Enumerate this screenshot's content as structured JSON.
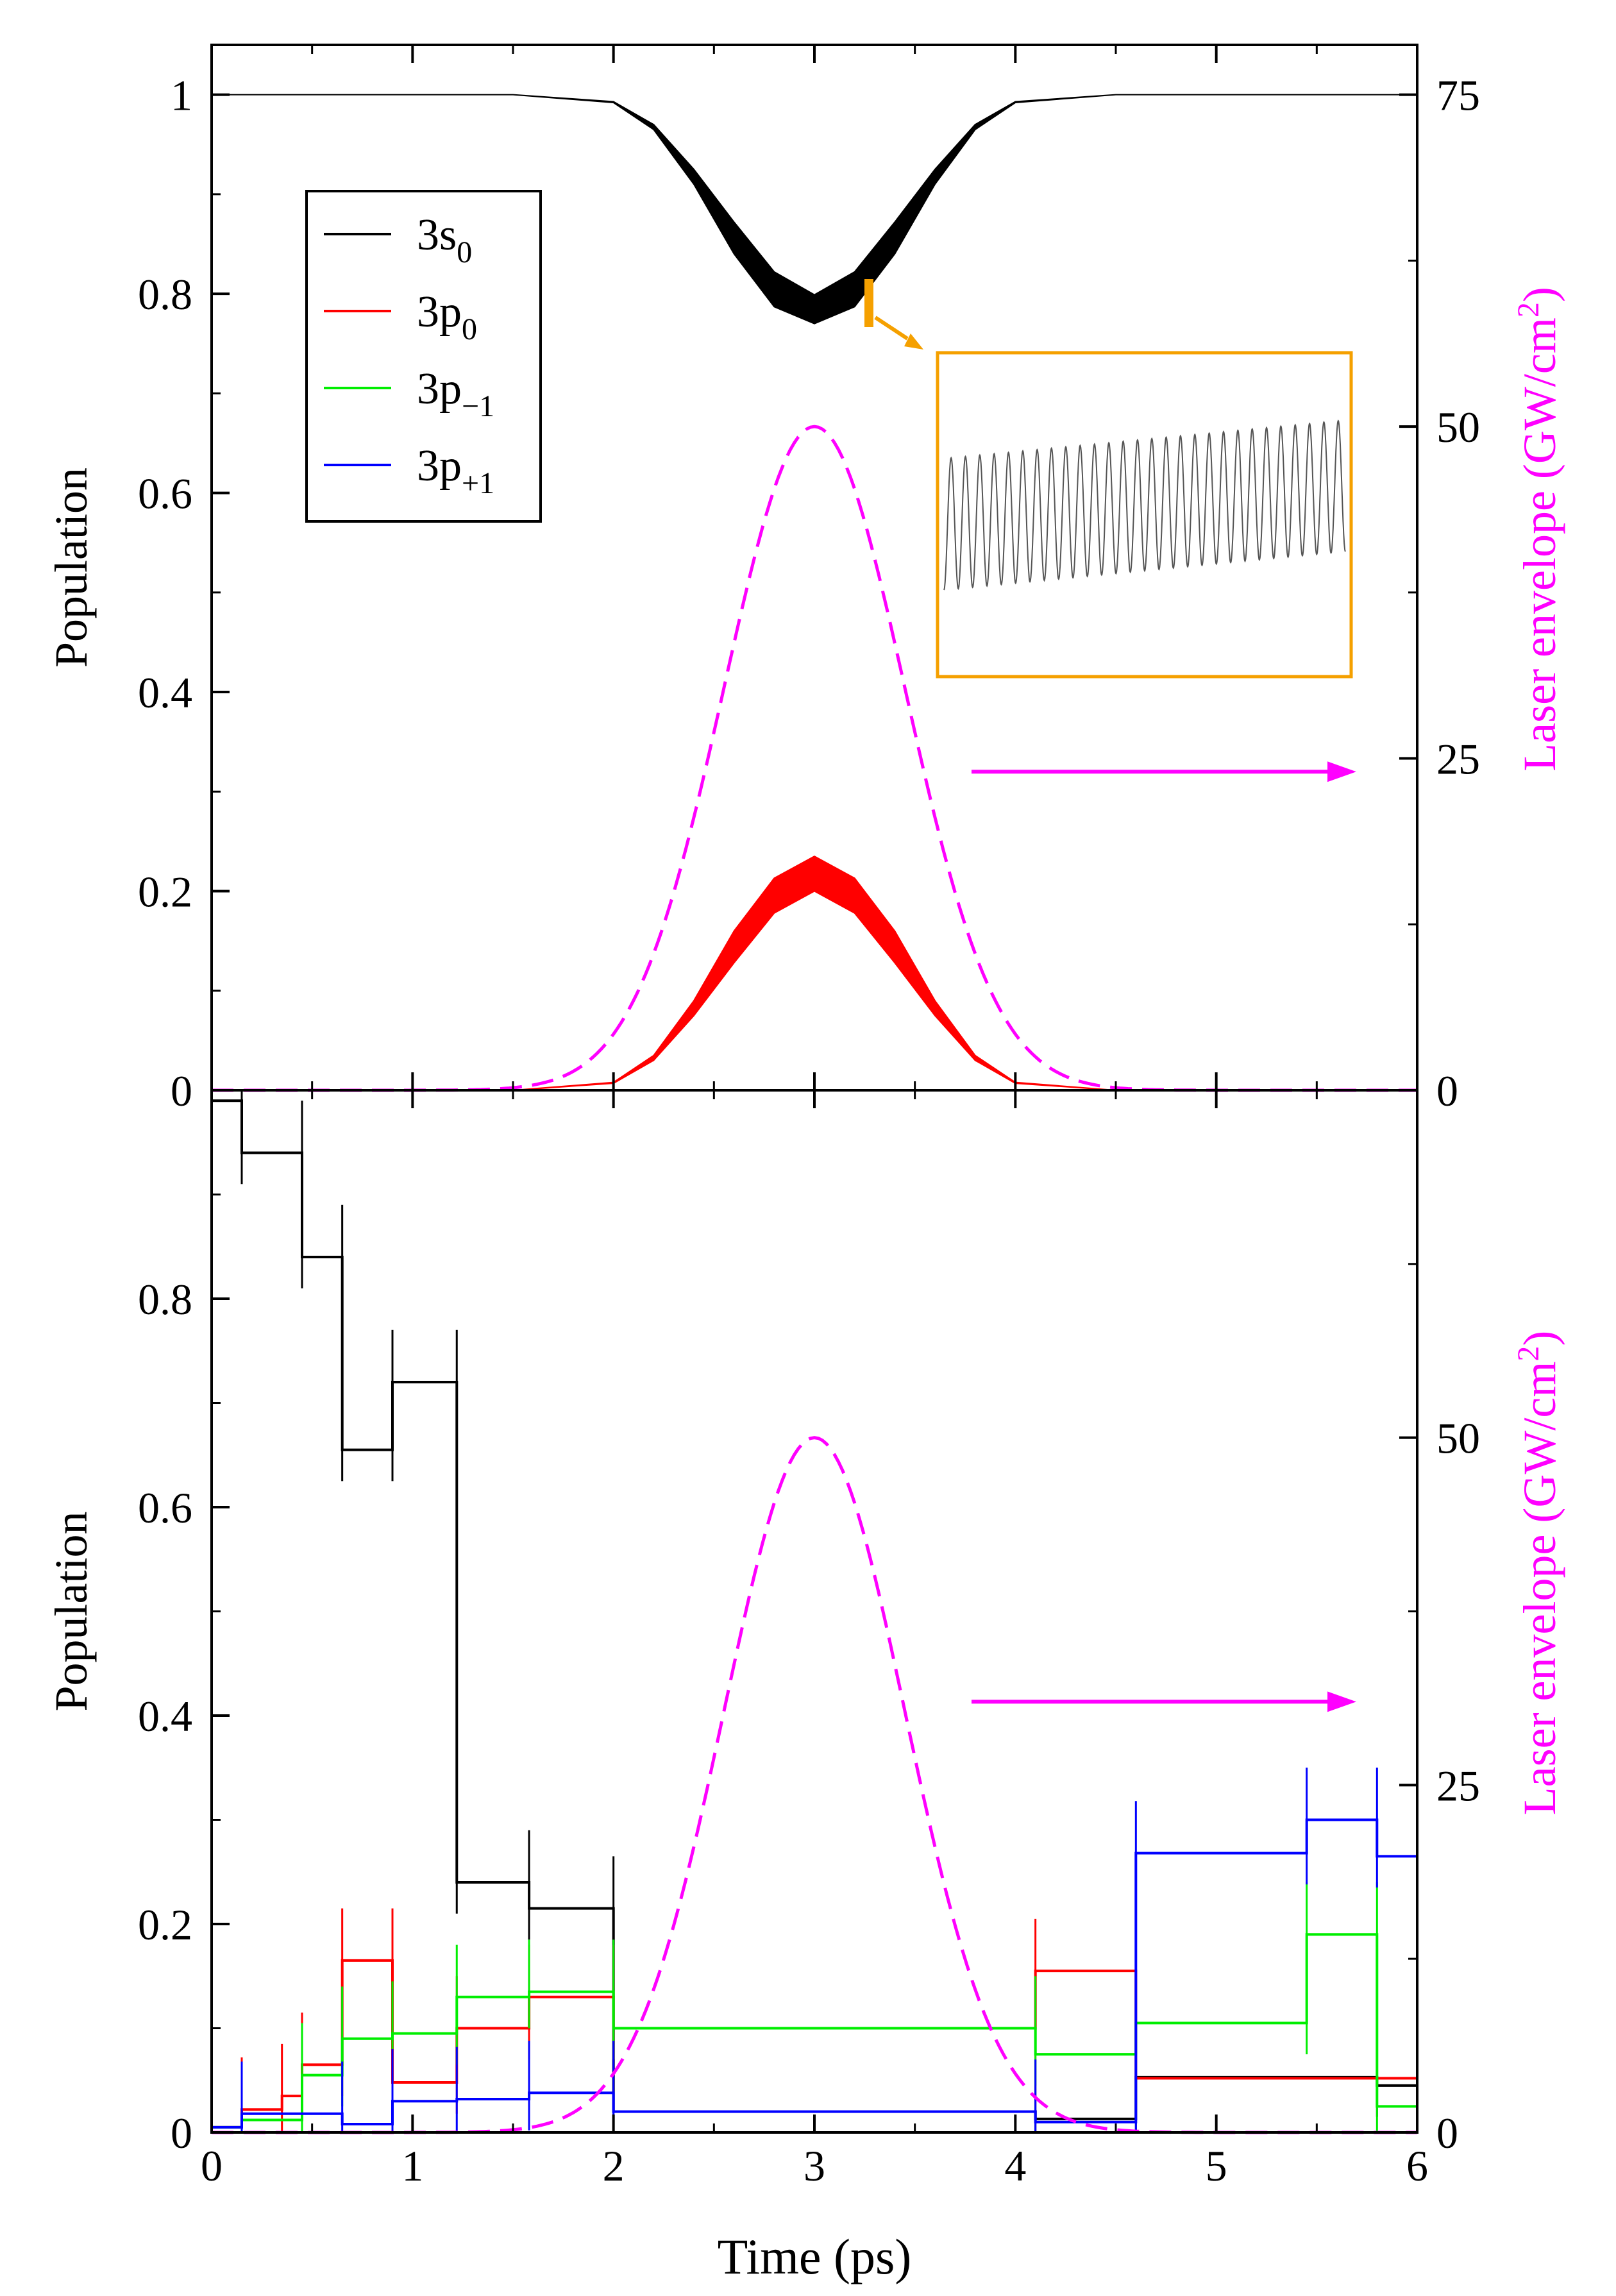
{
  "figure": {
    "x_axis_label": "Time (ps)",
    "colors": {
      "s0": "#000000",
      "p0": "#ff0000",
      "pm1": "#00ee00",
      "pp1": "#0000ff",
      "laser": "#ff00ff",
      "inset": "#f5a000"
    }
  },
  "chart_data": [
    {
      "type": "line",
      "panel": "top",
      "ylabel": "Population",
      "y2label": "Laser envelope (GW/cm^2)",
      "xlim": [
        0,
        6
      ],
      "ylim": [
        0,
        1.05
      ],
      "y2lim": [
        0,
        78.75
      ],
      "xticks": [
        "0",
        "1",
        "2",
        "3",
        "4",
        "5",
        "6"
      ],
      "yticks": [
        0,
        0.2,
        0.4,
        0.6,
        0.8,
        1
      ],
      "ytick_labels": [
        "0",
        "0.2",
        "0.4",
        "0.6",
        "0.8",
        "1"
      ],
      "y2ticks": [
        0,
        25,
        50,
        75
      ],
      "y2tick_labels": [
        "0",
        "25",
        "50",
        "75"
      ],
      "legend_position": "upper-left",
      "legend": [
        {
          "base": "3s",
          "sub": "0",
          "color": "#000000"
        },
        {
          "base": "3p",
          "sub": "0",
          "color": "#ff0000"
        },
        {
          "base": "3p",
          "sub": "−1",
          "color": "#00ee00"
        },
        {
          "base": "3p",
          "sub": "+1",
          "color": "#0000ff"
        }
      ],
      "series": [
        {
          "key": "3s0",
          "color": "#000000",
          "band": true,
          "x": [
            0,
            1.5,
            2.0,
            2.2,
            2.4,
            2.6,
            2.8,
            3.0,
            3.2,
            3.4,
            3.6,
            3.8,
            4.0,
            4.5,
            6
          ],
          "y_upper": [
            1.0,
            1.0,
            0.993,
            0.97,
            0.925,
            0.872,
            0.822,
            0.799,
            0.822,
            0.872,
            0.925,
            0.97,
            0.993,
            1.0,
            1.0
          ],
          "y_lower": [
            1.0,
            1.0,
            0.992,
            0.965,
            0.91,
            0.84,
            0.787,
            0.77,
            0.787,
            0.84,
            0.91,
            0.965,
            0.992,
            1.0,
            1.0
          ]
        },
        {
          "key": "3p0",
          "color": "#ff0000",
          "band": true,
          "x": [
            0,
            1.5,
            2.0,
            2.2,
            2.4,
            2.6,
            2.8,
            3.0,
            3.2,
            3.4,
            3.6,
            3.8,
            4.0,
            4.5,
            6
          ],
          "y_upper": [
            0,
            0,
            0.008,
            0.035,
            0.09,
            0.16,
            0.213,
            0.235,
            0.213,
            0.16,
            0.09,
            0.035,
            0.008,
            0,
            0
          ],
          "y_lower": [
            0,
            0,
            0.007,
            0.03,
            0.075,
            0.128,
            0.178,
            0.2,
            0.178,
            0.128,
            0.075,
            0.03,
            0.007,
            0,
            0
          ]
        }
      ],
      "laser_envelope": {
        "peak_x": 3.0,
        "peak_gw": 50,
        "sigma": 0.45,
        "style": "dashed",
        "color": "#ff00ff"
      },
      "inset": {
        "note": "zoom of 3s0 oscillation near t = 3.27 ps",
        "color": "#f5a000",
        "color_line": "#555555"
      }
    },
    {
      "type": "line",
      "panel": "bottom",
      "ylabel": "Population",
      "y2label": "Laser envelope (GW/cm^2)",
      "xlabel": "Time (ps)",
      "xlim": [
        0,
        6
      ],
      "ylim": [
        0,
        1.0
      ],
      "y2lim": [
        0,
        75
      ],
      "xticks": [
        "0",
        "1",
        "2",
        "3",
        "4",
        "5",
        "6"
      ],
      "yticks": [
        0,
        0.2,
        0.4,
        0.6,
        0.8
      ],
      "ytick_labels": [
        "0",
        "0.2",
        "0.4",
        "0.6",
        "0.8"
      ],
      "y2ticks": [
        0,
        25,
        50
      ],
      "y2tick_labels": [
        "0",
        "25",
        "50"
      ],
      "series": [
        {
          "key": "3s0",
          "color": "#000000",
          "steps": [
            [
              0.0,
              0.15,
              0.99
            ],
            [
              0.15,
              0.45,
              0.94
            ],
            [
              0.45,
              0.65,
              0.84
            ],
            [
              0.65,
              0.9,
              0.655
            ],
            [
              0.9,
              1.22,
              0.72
            ],
            [
              1.22,
              1.58,
              0.24
            ],
            [
              1.58,
              2.0,
              0.215
            ],
            [
              2.0,
              4.1,
              0.02
            ],
            [
              4.1,
              4.6,
              0.013
            ],
            [
              4.6,
              5.8,
              0.053
            ],
            [
              5.8,
              6.0,
              0.045
            ]
          ]
        },
        {
          "key": "3p0",
          "color": "#ff0000",
          "steps": [
            [
              0.0,
              0.15,
              0.005
            ],
            [
              0.15,
              0.35,
              0.022
            ],
            [
              0.35,
              0.45,
              0.035
            ],
            [
              0.45,
              0.65,
              0.065
            ],
            [
              0.65,
              0.9,
              0.165
            ],
            [
              0.9,
              1.22,
              0.048
            ],
            [
              1.22,
              1.58,
              0.1
            ],
            [
              1.58,
              2.0,
              0.13
            ],
            [
              2.0,
              4.1,
              0.1
            ],
            [
              4.1,
              4.6,
              0.155
            ],
            [
              4.6,
              6.0,
              0.052
            ]
          ]
        },
        {
          "key": "3p-1",
          "color": "#00ee00",
          "steps": [
            [
              0.0,
              0.15,
              0.005
            ],
            [
              0.15,
              0.45,
              0.012
            ],
            [
              0.45,
              0.65,
              0.055
            ],
            [
              0.65,
              0.9,
              0.09
            ],
            [
              0.9,
              1.22,
              0.095
            ],
            [
              1.22,
              1.58,
              0.13
            ],
            [
              1.58,
              2.0,
              0.135
            ],
            [
              2.0,
              4.1,
              0.1
            ],
            [
              4.1,
              4.6,
              0.075
            ],
            [
              4.6,
              5.45,
              0.105
            ],
            [
              5.45,
              5.8,
              0.19
            ],
            [
              5.8,
              6.0,
              0.025
            ]
          ]
        },
        {
          "key": "3p+1",
          "color": "#0000ff",
          "steps": [
            [
              0.0,
              0.15,
              0.005
            ],
            [
              0.15,
              0.65,
              0.018
            ],
            [
              0.65,
              0.9,
              0.008
            ],
            [
              0.9,
              1.22,
              0.03
            ],
            [
              1.22,
              1.58,
              0.032
            ],
            [
              1.58,
              2.0,
              0.038
            ],
            [
              2.0,
              4.1,
              0.02
            ],
            [
              4.1,
              4.6,
              0.01
            ],
            [
              4.6,
              5.45,
              0.268
            ],
            [
              5.45,
              5.8,
              0.3
            ],
            [
              5.8,
              6.0,
              0.265
            ]
          ]
        }
      ],
      "laser_envelope": {
        "peak_x": 3.0,
        "peak_gw": 50,
        "sigma": 0.45,
        "style": "dashed",
        "color": "#ff00ff"
      }
    }
  ]
}
